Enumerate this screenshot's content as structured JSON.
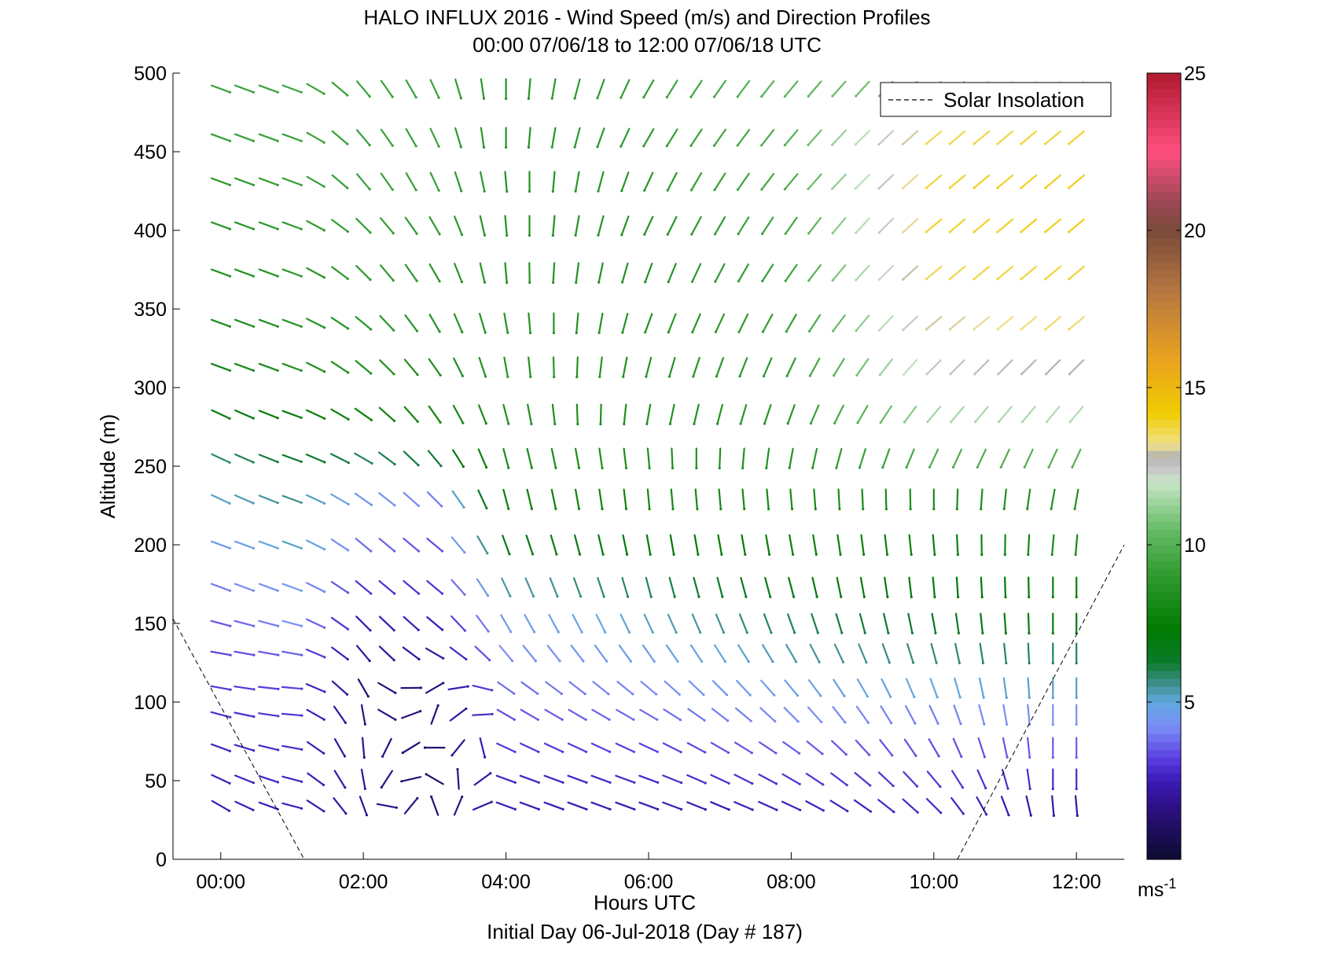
{
  "chart_data": {
    "type": "quiver",
    "title": "HALO INFLUX 2016 - Wind Speed (m/s) and Direction Profiles",
    "subtitle": "00:00 07/06/18 to 12:00 07/06/18  UTC",
    "xlabel": "Hours UTC",
    "xlabel2": "Initial Day 06-Jul-2018 (Day # 187)",
    "ylabel": "Altitude (m)",
    "xlim": [
      -0.67,
      12.67
    ],
    "ylim": [
      0,
      500
    ],
    "x_ticks": [
      0,
      2,
      4,
      6,
      8,
      10,
      12
    ],
    "x_tick_labels": [
      "00:00",
      "02:00",
      "04:00",
      "06:00",
      "08:00",
      "10:00",
      "12:00"
    ],
    "y_ticks": [
      0,
      50,
      100,
      150,
      200,
      250,
      300,
      350,
      400,
      450,
      500
    ],
    "y_tick_labels": [
      "0",
      "50",
      "100",
      "150",
      "200",
      "250",
      "300",
      "350",
      "400",
      "450",
      "500"
    ],
    "legend": {
      "entries": [
        "Solar Insolation"
      ],
      "location": "top-right"
    },
    "colorbar": {
      "min": 0,
      "max": 25,
      "ticks": [
        5,
        10,
        15,
        20,
        25
      ],
      "tick_labels": [
        "5",
        "10",
        "15",
        "20",
        "25"
      ],
      "label": "ms",
      "label_sup": "-1",
      "stops": [
        {
          "v": 0,
          "c": "#0b0b2e"
        },
        {
          "v": 1.5,
          "c": "#2a0f7a"
        },
        {
          "v": 2.5,
          "c": "#3a1ab8"
        },
        {
          "v": 3.2,
          "c": "#5a3ee0"
        },
        {
          "v": 4.2,
          "c": "#7a8cf5"
        },
        {
          "v": 5.0,
          "c": "#62a8e0"
        },
        {
          "v": 5.6,
          "c": "#3d8f8c"
        },
        {
          "v": 6.3,
          "c": "#0a7a2a"
        },
        {
          "v": 7.3,
          "c": "#007a00"
        },
        {
          "v": 9.0,
          "c": "#2e9a2e"
        },
        {
          "v": 10.5,
          "c": "#66bb66"
        },
        {
          "v": 12.0,
          "c": "#c8e6c8"
        },
        {
          "v": 12.4,
          "c": "#c8c8c8"
        },
        {
          "v": 12.8,
          "c": "#b4b4b4"
        },
        {
          "v": 13.2,
          "c": "#f0e08a"
        },
        {
          "v": 14.2,
          "c": "#f0cc00"
        },
        {
          "v": 16.0,
          "c": "#e8a020"
        },
        {
          "v": 18.0,
          "c": "#b87840"
        },
        {
          "v": 20.0,
          "c": "#7a4a3a"
        },
        {
          "v": 21.0,
          "c": "#a04858"
        },
        {
          "v": 22.5,
          "c": "#ff4f80"
        },
        {
          "v": 25.0,
          "c": "#b01a30"
        }
      ]
    },
    "solar_insolation": {
      "segments": [
        {
          "x": [
            -0.67,
            1.17
          ],
          "y": [
            153,
            0
          ]
        },
        {
          "x": [
            10.33,
            12.67
          ],
          "y": [
            0,
            200
          ]
        }
      ]
    },
    "quiver": {
      "altitudes": [
        34,
        51,
        71,
        92,
        109,
        131,
        150,
        173,
        200,
        229,
        255,
        283,
        313,
        341,
        373,
        403,
        431,
        459,
        490
      ],
      "times": [
        0,
        0.33,
        0.67,
        1.0,
        1.33,
        1.67,
        2.0,
        2.33,
        2.67,
        3.0,
        3.33,
        3.67,
        4.0,
        4.33,
        4.67,
        5.0,
        5.33,
        5.67,
        6.0,
        6.33,
        6.67,
        7.0,
        7.33,
        7.67,
        8.0,
        8.33,
        8.67,
        9.0,
        9.33,
        9.67,
        10.0,
        10.33,
        10.67,
        11.0,
        11.33,
        11.67,
        12.0
      ],
      "units": {
        "speed": "m/s",
        "direction_from": "deg"
      },
      "profiles": [
        {
          "t": 0,
          "speed": [
            2.5,
            2.6,
            2.7,
            2.9,
            3.0,
            3.2,
            3.5,
            4.0,
            4.6,
            5.2,
            5.8,
            6.8,
            8.0,
            8.4,
            8.6,
            8.8,
            9.0,
            9.2,
            9.4
          ],
          "dir": [
            300,
            295,
            290,
            285,
            280,
            280,
            285,
            290,
            290,
            295,
            295,
            295,
            290,
            290,
            290,
            290,
            290,
            290,
            290
          ]
        },
        {
          "t": 1.0,
          "speed": [
            2.6,
            2.7,
            2.8,
            3.0,
            3.2,
            3.6,
            4.2,
            4.6,
            5.2,
            5.6,
            6.4,
            7.4,
            8.4,
            8.6,
            8.8,
            9.0,
            9.2,
            9.3,
            9.4
          ],
          "dir": [
            285,
            285,
            280,
            275,
            275,
            280,
            285,
            290,
            290,
            290,
            290,
            290,
            290,
            290,
            290,
            290,
            290,
            290,
            290
          ]
        },
        {
          "t": 2.0,
          "speed": [
            2.0,
            2.0,
            1.8,
            1.6,
            1.5,
            2.0,
            2.4,
            3.0,
            3.8,
            4.4,
            6.0,
            7.8,
            8.6,
            8.8,
            9.0,
            9.2,
            9.3,
            9.3,
            9.3
          ],
          "dir": [
            340,
            350,
            355,
            350,
            330,
            320,
            315,
            310,
            310,
            305,
            300,
            305,
            310,
            310,
            315,
            315,
            320,
            320,
            320
          ]
        },
        {
          "t": 3.0,
          "speed": [
            1.4,
            1.2,
            1.3,
            1.5,
            1.6,
            2.0,
            2.5,
            3.0,
            3.4,
            4.0,
            6.2,
            7.8,
            8.4,
            8.6,
            8.8,
            9.0,
            9.2,
            9.3,
            9.3
          ],
          "dir": [
            160,
            120,
            90,
            200,
            240,
            300,
            310,
            310,
            310,
            315,
            320,
            325,
            325,
            330,
            330,
            330,
            335,
            335,
            335
          ]
        },
        {
          "t": 4.0,
          "speed": [
            2.4,
            2.6,
            3.0,
            3.4,
            3.8,
            4.2,
            4.6,
            5.4,
            6.6,
            7.6,
            8.2,
            8.4,
            8.6,
            8.6,
            8.6,
            8.6,
            8.6,
            8.6,
            8.6
          ],
          "dir": [
            290,
            290,
            295,
            300,
            305,
            320,
            330,
            335,
            340,
            345,
            345,
            345,
            350,
            350,
            355,
            355,
            355,
            0,
            0
          ]
        },
        {
          "t": 6.0,
          "speed": [
            2.4,
            2.8,
            3.2,
            3.8,
            4.2,
            4.6,
            5.2,
            6.0,
            7.2,
            8.0,
            8.4,
            8.4,
            8.6,
            8.6,
            8.6,
            8.6,
            8.8,
            9.0,
            9.2
          ],
          "dir": [
            290,
            290,
            295,
            300,
            310,
            325,
            335,
            345,
            350,
            355,
            355,
            10,
            15,
            20,
            20,
            25,
            25,
            30,
            30
          ]
        },
        {
          "t": 8.0,
          "speed": [
            2.6,
            3.0,
            3.6,
            4.2,
            4.8,
            5.4,
            6.0,
            6.8,
            7.6,
            8.2,
            8.6,
            8.8,
            9.0,
            9.2,
            9.4,
            9.6,
            9.8,
            10.0,
            10.2
          ],
          "dir": [
            295,
            300,
            305,
            315,
            320,
            330,
            340,
            345,
            350,
            355,
            10,
            20,
            25,
            30,
            35,
            35,
            40,
            40,
            40
          ]
        },
        {
          "t": 10.0,
          "speed": [
            2.8,
            3.0,
            3.4,
            4.0,
            5.0,
            5.8,
            6.4,
            7.0,
            7.6,
            8.2,
            9.8,
            11.4,
            12.4,
            13.0,
            13.6,
            13.8,
            13.8,
            13.6,
            11.0
          ],
          "dir": [
            315,
            320,
            330,
            335,
            340,
            345,
            350,
            355,
            355,
            0,
            25,
            40,
            45,
            50,
            50,
            50,
            50,
            50,
            45
          ]
        },
        {
          "t": 11.67,
          "speed": [
            2.2,
            2.8,
            3.6,
            4.4,
            5.2,
            6.0,
            6.8,
            7.6,
            8.2,
            8.6,
            10.0,
            11.6,
            12.8,
            13.4,
            13.8,
            14.0,
            14.0,
            13.8,
            12.2
          ],
          "dir": [
            355,
            0,
            0,
            0,
            0,
            0,
            0,
            0,
            5,
            10,
            25,
            40,
            45,
            50,
            50,
            50,
            50,
            50,
            45
          ]
        }
      ]
    }
  }
}
